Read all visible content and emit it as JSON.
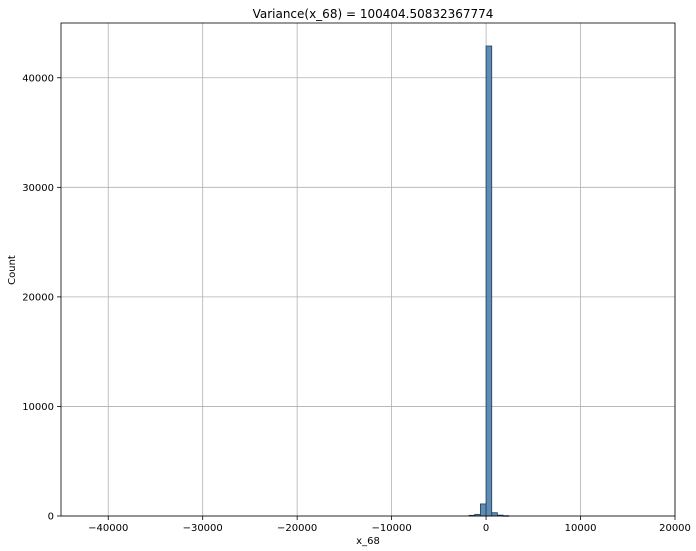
{
  "chart_data": {
    "type": "bar",
    "title": "Variance(x_68) = 100404.50832367774",
    "xlabel": "x_68",
    "ylabel": "Count",
    "xlim": [
      -45000,
      20000
    ],
    "ylim": [
      0,
      45000
    ],
    "x_ticks": [
      {
        "value": -40000,
        "label": "−40000"
      },
      {
        "value": -30000,
        "label": "−30000"
      },
      {
        "value": -20000,
        "label": "−20000"
      },
      {
        "value": -10000,
        "label": "−10000"
      },
      {
        "value": 0,
        "label": "0"
      },
      {
        "value": 10000,
        "label": "10000"
      },
      {
        "value": 20000,
        "label": "20000"
      }
    ],
    "y_ticks": [
      {
        "value": 0,
        "label": "0"
      },
      {
        "value": 10000,
        "label": "10000"
      },
      {
        "value": 20000,
        "label": "20000"
      },
      {
        "value": 30000,
        "label": "30000"
      },
      {
        "value": 40000,
        "label": "40000"
      }
    ],
    "grid": true,
    "bars": [
      {
        "x0": -1800,
        "x1": -1200,
        "count": 60
      },
      {
        "x0": -1200,
        "x1": -600,
        "count": 150
      },
      {
        "x0": -600,
        "x1": 0,
        "count": 1100
      },
      {
        "x0": 0,
        "x1": 600,
        "count": 42900
      },
      {
        "x0": 600,
        "x1": 1200,
        "count": 300
      },
      {
        "x0": 1200,
        "x1": 1800,
        "count": 80
      },
      {
        "x0": 1800,
        "x1": 2400,
        "count": 30
      }
    ],
    "colors": {
      "bar": "#4c7faa",
      "edge": "#1f3f5f"
    }
  }
}
